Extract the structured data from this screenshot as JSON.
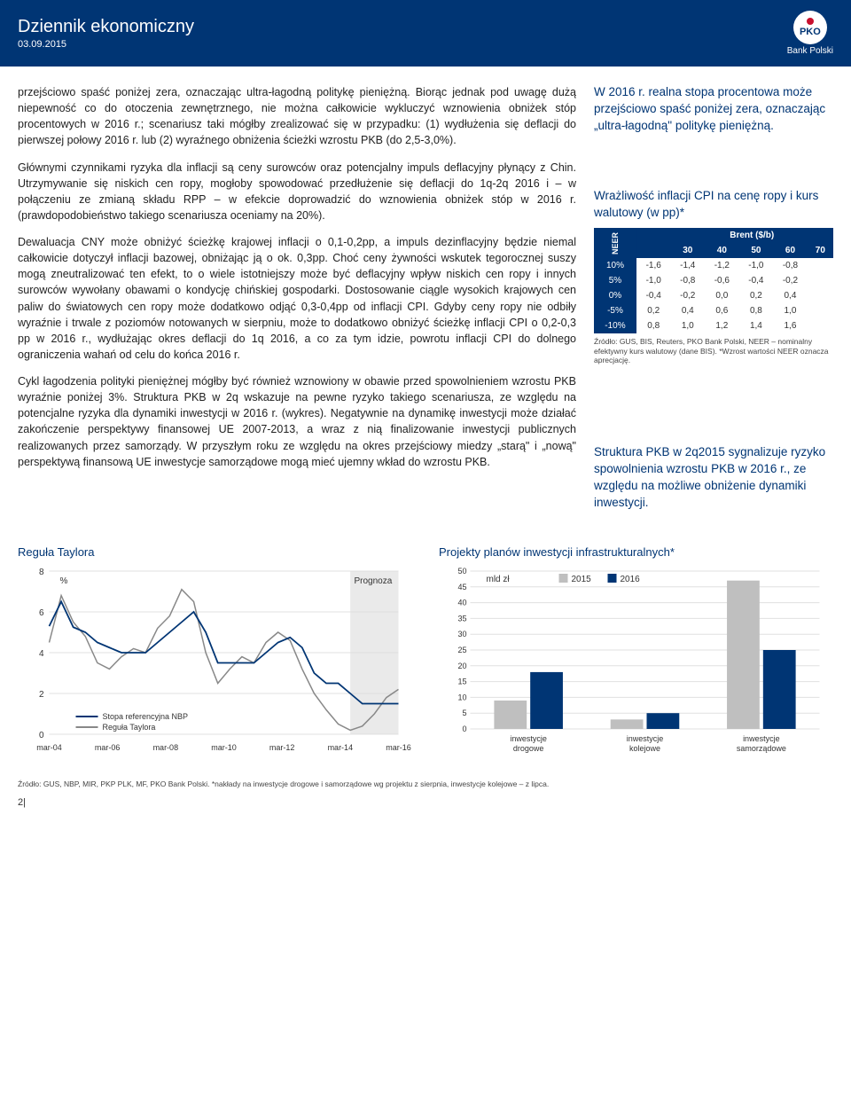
{
  "header": {
    "title": "Dziennik ekonomiczny",
    "date": "03.09.2015",
    "bank_label": "Bank Polski",
    "pko_text": "PKO"
  },
  "paragraphs": {
    "p1": "przejściowo spaść poniżej zera, oznaczając ultra-łagodną politykę pieniężną. Biorąc jednak pod uwagę dużą niepewność co do otoczenia zewnętrznego, nie można całkowicie wykluczyć wznowienia obniżek stóp procentowych w 2016 r.; scenariusz taki mógłby zrealizować się w przypadku: (1) wydłużenia się deflacji do pierwszej połowy 2016 r. lub (2) wyraźnego obniżenia ścieżki wzrostu PKB (do 2,5-3,0%).",
    "p2": "Głównymi czynnikami ryzyka dla inflacji są ceny surowców oraz potencjalny impuls deflacyjny płynący z Chin. Utrzymywanie się niskich cen ropy, mogłoby spowodować przedłużenie się deflacji do 1q-2q 2016 i – w połączeniu ze zmianą składu RPP – w efekcie doprowadzić do wznowienia obniżek stóp w 2016 r. (prawdopodobieństwo takiego scenariusza oceniamy na 20%).",
    "p3": "Dewaluacja CNY może obniżyć ścieżkę krajowej inflacji o 0,1-0,2pp, a impuls dezinflacyjny będzie niemal całkowicie dotyczył inflacji bazowej, obniżając ją o ok. 0,3pp. Choć ceny żywności wskutek tegorocznej suszy mogą zneutralizować ten efekt, to o wiele istotniejszy może być deflacyjny wpływ niskich cen ropy i innych surowców wywołany obawami o kondycję chińskiej gospodarki. Dostosowanie ciągle wysokich krajowych cen paliw do światowych cen ropy może dodatkowo odjąć 0,3-0,4pp od inflacji CPI. Gdyby ceny ropy nie odbiły wyraźnie i trwale z poziomów notowanych w sierpniu, może to dodatkowo obniżyć ścieżkę inflacji CPI o 0,2-0,3 pp w 2016 r., wydłużając okres deflacji do 1q 2016, a co za tym idzie, powrotu inflacji CPI do dolnego ograniczenia wahań od celu do końca 2016 r.",
    "p4": "Cykl łagodzenia polityki pieniężnej mógłby być również wznowiony w obawie przed spowolnieniem wzrostu PKB wyraźnie poniżej 3%. Struktura PKB w 2q wskazuje na pewne ryzyko takiego scenariusza, ze względu na potencjalne ryzyka dla dynamiki inwestycji w 2016 r. (wykres). Negatywnie na dynamikę inwestycji może działać zakończenie perspektywy finansowej UE 2007-2013, a wraz z nią finalizowanie inwestycji publicznych realizowanych przez samorządy. W przyszłym roku ze względu na okres przejściowy miedzy „starą\" i „nową\" perspektywą finansową UE inwestycje samorządowe mogą mieć ujemny wkład do wzrostu PKB."
  },
  "side": {
    "note1": "W 2016 r. realna stopa procentowa może przejściowo spaść poniżej zera, oznaczając „ultra-łagodną\" politykę pieniężną.",
    "note2": "Wrażliwość inflacji CPI na cenę ropy i kurs walutowy (w pp)*",
    "note3": "Struktura PKB w 2q2015 sygnalizuje ryzyko spowolnienia wzrostu PKB w 2016 r., ze względu na możliwe obniżenie dynamiki inwestycji."
  },
  "sens_table": {
    "brent_label": "Brent ($/b)",
    "neer_label": "NEER",
    "col_headers": [
      "30",
      "40",
      "50",
      "60",
      "70"
    ],
    "row_headers": [
      "10%",
      "5%",
      "0%",
      "-5%",
      "-10%"
    ],
    "rows": [
      [
        "-1,6",
        "-1,4",
        "-1,2",
        "-1,0",
        "-0,8"
      ],
      [
        "-1,0",
        "-0,8",
        "-0,6",
        "-0,4",
        "-0,2"
      ],
      [
        "-0,4",
        "-0,2",
        "0,0",
        "0,2",
        "0,4"
      ],
      [
        "0,2",
        "0,4",
        "0,6",
        "0,8",
        "1,0"
      ],
      [
        "0,8",
        "1,0",
        "1,2",
        "1,4",
        "1,6"
      ]
    ],
    "footnote": "Źródło: GUS, BIS, Reuters, PKO Bank Polski, NEER – nominalny efektywny kurs walutowy (dane BIS). *Wzrost wartości NEER oznacza aprecjację."
  },
  "charts": {
    "taylor": {
      "title": "Reguła Taylora",
      "ylabel": "%",
      "forecast_label": "Prognoza",
      "legend": [
        "Stopa referencyjna NBP",
        "Reguła Taylora"
      ],
      "x_ticks": [
        "mar-04",
        "mar-06",
        "mar-08",
        "mar-10",
        "mar-12",
        "mar-14",
        "mar-16"
      ],
      "y_ticks": [
        0,
        2,
        4,
        6,
        8
      ],
      "ylim": [
        0,
        8
      ],
      "colors": {
        "nbp": "#003574",
        "taylor": "#888888",
        "forecast_band": "#dcdcdc",
        "grid": "#e0e0e0"
      },
      "nbp_series": [
        5.3,
        6.5,
        5.25,
        5.0,
        4.5,
        4.25,
        4.0,
        4.0,
        4.0,
        4.5,
        5.0,
        5.5,
        6.0,
        5.0,
        3.5,
        3.5,
        3.5,
        3.5,
        4.0,
        4.5,
        4.75,
        4.25,
        3.0,
        2.5,
        2.5,
        2.0,
        1.5,
        1.5,
        1.5,
        1.5
      ],
      "taylor_series": [
        4.5,
        6.8,
        5.5,
        4.8,
        3.5,
        3.2,
        3.8,
        4.2,
        4.0,
        5.2,
        5.8,
        7.1,
        6.5,
        4.0,
        2.5,
        3.2,
        3.8,
        3.5,
        4.5,
        5.0,
        4.6,
        3.2,
        2.0,
        1.2,
        0.5,
        0.2,
        0.4,
        1.0,
        1.8,
        2.2
      ],
      "forecast_start_index": 25
    },
    "invest": {
      "title": "Projekty planów inwestycji infrastrukturalnych*",
      "ylabel": "mld zł",
      "legend": [
        "2015",
        "2016"
      ],
      "categories": [
        "inwestycje drogowe",
        "inwestycje kolejowe",
        "inwestycje samorządowe"
      ],
      "values_2015": [
        9,
        3,
        47
      ],
      "values_2016": [
        18,
        5,
        25
      ],
      "y_ticks": [
        0,
        5,
        10,
        15,
        20,
        25,
        30,
        35,
        40,
        45,
        50
      ],
      "ylim": [
        0,
        50
      ],
      "colors": {
        "2015": "#bfbfbf",
        "2016": "#003574",
        "grid": "#e0e0e0"
      }
    },
    "footnote": "Źródło: GUS, NBP, MIR, PKP PLK, MF, PKO Bank Polski. *nakłady na inwestycje drogowe i samorządowe wg projektu z sierpnia, inwestycje kolejowe – z lipca."
  },
  "page_num": "2|"
}
